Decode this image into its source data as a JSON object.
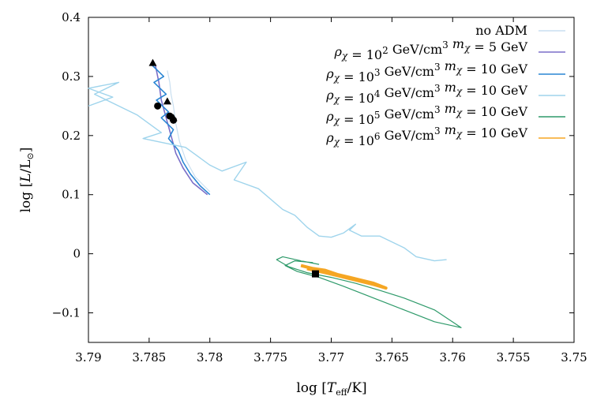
{
  "chart_data": {
    "type": "line",
    "xlabel": "log [T_eff/K]",
    "ylabel": "log [L/L⊙]",
    "xlim": [
      3.79,
      3.75
    ],
    "ylim": [
      -0.15,
      0.4
    ],
    "x_ticks": [
      {
        "value": 3.79,
        "label": "3.79"
      },
      {
        "value": 3.785,
        "label": "3.785"
      },
      {
        "value": 3.78,
        "label": "3.78"
      },
      {
        "value": 3.775,
        "label": "3.775"
      },
      {
        "value": 3.77,
        "label": "3.77"
      },
      {
        "value": 3.765,
        "label": "3.765"
      },
      {
        "value": 3.76,
        "label": "3.76"
      },
      {
        "value": 3.755,
        "label": "3.755"
      },
      {
        "value": 3.75,
        "label": "3.75"
      }
    ],
    "y_ticks": [
      {
        "value": 0.4,
        "label": "0.4"
      },
      {
        "value": 0.3,
        "label": "0.3"
      },
      {
        "value": 0.2,
        "label": "0.2"
      },
      {
        "value": 0.1,
        "label": "0.1"
      },
      {
        "value": 0,
        "label": "0"
      },
      {
        "value": -0.1,
        "label": "−0.1"
      }
    ],
    "legend_position": "top-right",
    "series": [
      {
        "name": "no ADM",
        "color": "#c9dff0",
        "points": [
          [
            3.7835,
            0.31
          ],
          [
            3.7833,
            0.29
          ],
          [
            3.7832,
            0.27
          ],
          [
            3.783,
            0.25
          ],
          [
            3.7828,
            0.22
          ],
          [
            3.7825,
            0.19
          ],
          [
            3.782,
            0.16
          ],
          [
            3.7812,
            0.13
          ],
          [
            3.78,
            0.105
          ]
        ]
      },
      {
        "name": "ρχ = 10^2 GeV/cm^3 mχ = 5 GeV",
        "color": "#7b6fc8",
        "points": [
          [
            3.7845,
            0.32
          ],
          [
            3.7842,
            0.29
          ],
          [
            3.784,
            0.26
          ],
          [
            3.7836,
            0.23
          ],
          [
            3.7832,
            0.2
          ],
          [
            3.7828,
            0.17
          ],
          [
            3.7822,
            0.145
          ],
          [
            3.7814,
            0.12
          ],
          [
            3.7802,
            0.1
          ]
        ]
      },
      {
        "name": "ρχ = 10^3 GeV/cm^3 mχ = 10 GeV",
        "color": "#2a86d4",
        "points": [
          [
            3.7848,
            0.32
          ],
          [
            3.7838,
            0.3
          ],
          [
            3.7846,
            0.29
          ],
          [
            3.7836,
            0.27
          ],
          [
            3.7844,
            0.26
          ],
          [
            3.7834,
            0.24
          ],
          [
            3.784,
            0.23
          ],
          [
            3.783,
            0.21
          ],
          [
            3.7834,
            0.195
          ],
          [
            3.7826,
            0.175
          ],
          [
            3.7822,
            0.155
          ],
          [
            3.7816,
            0.135
          ],
          [
            3.7808,
            0.115
          ],
          [
            3.78,
            0.1
          ]
        ]
      },
      {
        "name": "ρχ = 10^4 GeV/cm^3 mχ = 10 GeV",
        "color": "#9fd4ec",
        "points": [
          [
            3.79,
            0.25
          ],
          [
            3.788,
            0.265
          ],
          [
            3.79,
            0.28
          ],
          [
            3.7875,
            0.29
          ],
          [
            3.7895,
            0.27
          ],
          [
            3.786,
            0.235
          ],
          [
            3.785,
            0.22
          ],
          [
            3.784,
            0.205
          ],
          [
            3.7855,
            0.195
          ],
          [
            3.782,
            0.18
          ],
          [
            3.78,
            0.15
          ],
          [
            3.779,
            0.14
          ],
          [
            3.777,
            0.155
          ],
          [
            3.778,
            0.125
          ],
          [
            3.776,
            0.11
          ],
          [
            3.774,
            0.075
          ],
          [
            3.773,
            0.065
          ],
          [
            3.772,
            0.045
          ],
          [
            3.771,
            0.03
          ],
          [
            3.77,
            0.028
          ],
          [
            3.769,
            0.035
          ],
          [
            3.768,
            0.05
          ],
          [
            3.7685,
            0.04
          ],
          [
            3.7675,
            0.03
          ],
          [
            3.766,
            0.03
          ],
          [
            3.764,
            0.01
          ],
          [
            3.763,
            -0.005
          ],
          [
            3.7615,
            -0.012
          ],
          [
            3.7605,
            -0.01
          ]
        ]
      },
      {
        "name": "ρχ = 10^5 GeV/cm^3 mχ = 10 GeV",
        "color": "#2e9a6a",
        "points": [
          [
            3.771,
            -0.018
          ],
          [
            3.7725,
            -0.012
          ],
          [
            3.774,
            -0.005
          ],
          [
            3.7745,
            -0.01
          ],
          [
            3.7735,
            -0.022
          ],
          [
            3.772,
            -0.032
          ],
          [
            3.77,
            -0.04
          ],
          [
            3.768,
            -0.05
          ],
          [
            3.766,
            -0.062
          ],
          [
            3.764,
            -0.075
          ],
          [
            3.7615,
            -0.095
          ],
          [
            3.7593,
            -0.125
          ],
          [
            3.7615,
            -0.115
          ],
          [
            3.764,
            -0.095
          ],
          [
            3.7665,
            -0.075
          ],
          [
            3.769,
            -0.055
          ],
          [
            3.771,
            -0.04
          ],
          [
            3.7728,
            -0.03
          ],
          [
            3.7738,
            -0.02
          ],
          [
            3.773,
            -0.012
          ],
          [
            3.7715,
            -0.015
          ]
        ]
      },
      {
        "name": "ρχ = 10^6 GeV/cm^3 mχ = 10 GeV",
        "color": "#f5a623",
        "points": [
          [
            3.7725,
            -0.02
          ],
          [
            3.7715,
            -0.025
          ],
          [
            3.7705,
            -0.028
          ],
          [
            3.7695,
            -0.035
          ],
          [
            3.7685,
            -0.04
          ],
          [
            3.7675,
            -0.045
          ],
          [
            3.7665,
            -0.05
          ],
          [
            3.7655,
            -0.058
          ],
          [
            3.7665,
            -0.052
          ],
          [
            3.7685,
            -0.042
          ],
          [
            3.7705,
            -0.032
          ],
          [
            3.772,
            -0.025
          ]
        ]
      }
    ],
    "markers": [
      {
        "shape": "triangle",
        "x": 3.7847,
        "y": 0.323
      },
      {
        "shape": "triangle",
        "x": 3.7835,
        "y": 0.258
      },
      {
        "shape": "triangle",
        "x": 3.783,
        "y": 0.23
      },
      {
        "shape": "circle",
        "x": 3.7843,
        "y": 0.25
      },
      {
        "shape": "circle",
        "x": 3.7833,
        "y": 0.233
      },
      {
        "shape": "circle",
        "x": 3.783,
        "y": 0.226
      },
      {
        "shape": "square",
        "x": 3.7713,
        "y": -0.034
      }
    ]
  }
}
